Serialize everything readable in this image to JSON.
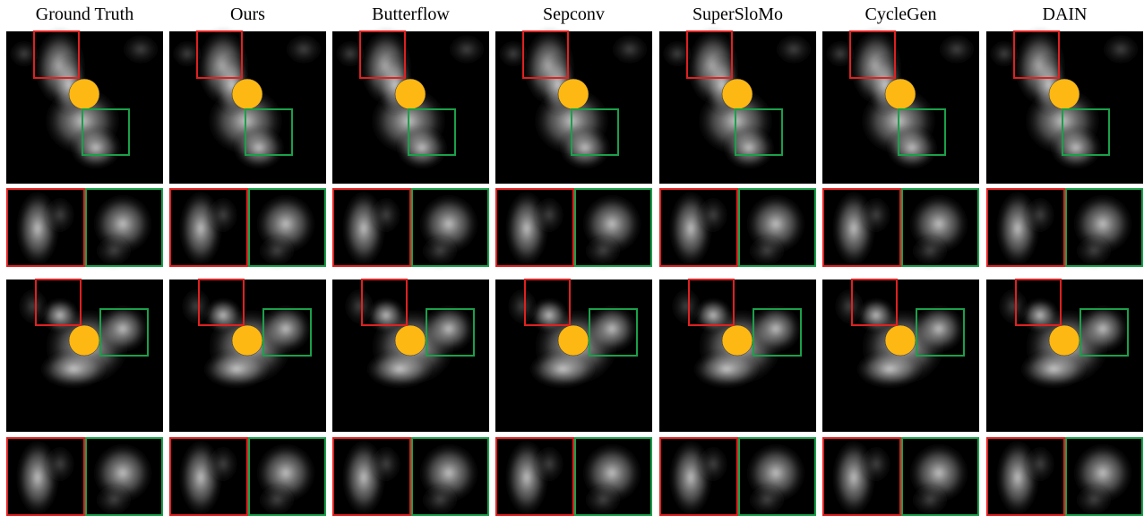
{
  "columns": [
    "Ground Truth",
    "Ours",
    "Butterflow",
    "Sepconv",
    "SuperSloMo",
    "CycleGen",
    "DAIN"
  ]
}
